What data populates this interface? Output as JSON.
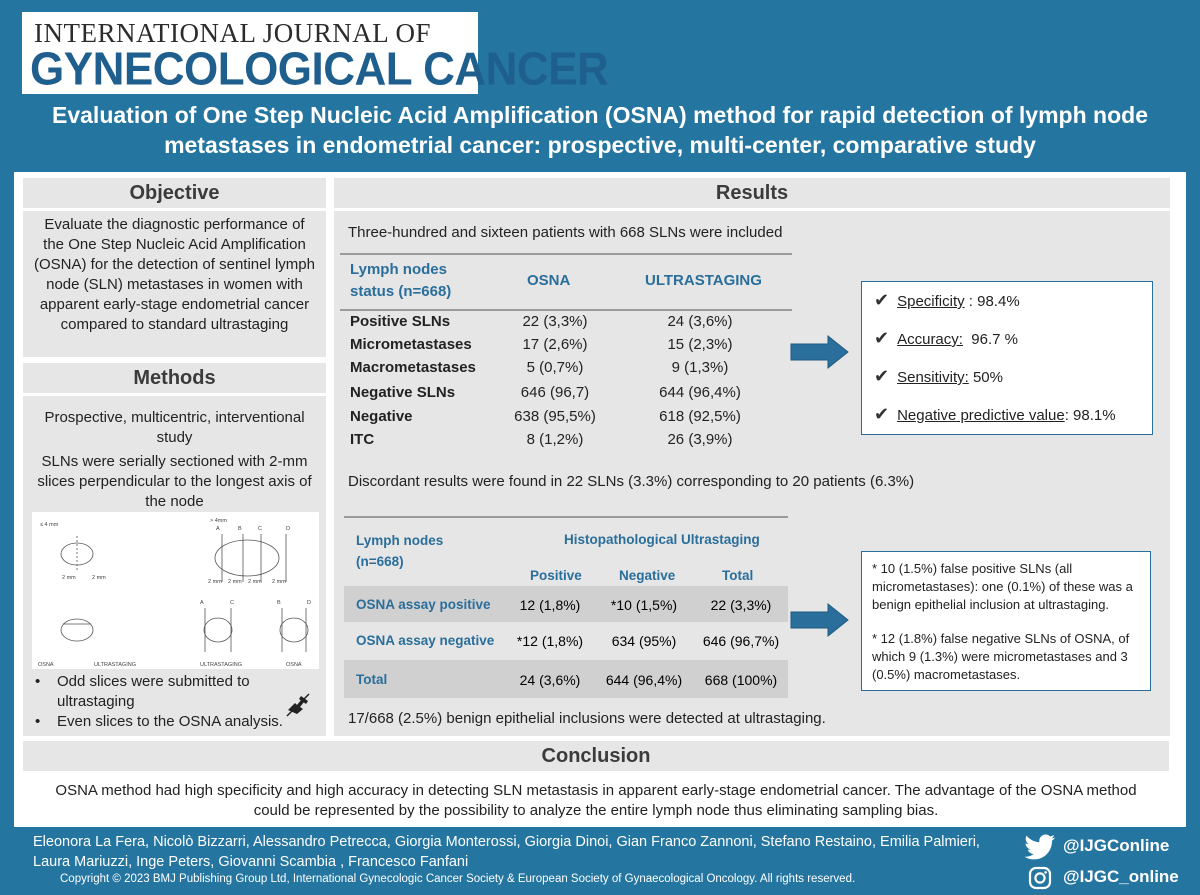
{
  "header": {
    "journal_top": "INTERNATIONAL JOURNAL OF",
    "journal_main": "GYNECOLOGICAL CANCER"
  },
  "title_line1": "Evaluation of One Step Nucleic Acid Amplification (OSNA) method for rapid detection of lymph node",
  "title_line2": "metastases in endometrial cancer: prospective, multi-center, comparative study",
  "objective": {
    "heading": "Objective",
    "text": "Evaluate the diagnostic performance of the One Step Nucleic Acid Amplification (OSNA) for the detection of sentinel lymph node (SLN) metastases in women with apparent early-stage endometrial cancer compared to standard ultrastaging"
  },
  "methods": {
    "heading": "Methods",
    "p1": "Prospective, multicentric, interventional study",
    "p2": "SLNs were serially sectioned with 2-mm slices perpendicular to the longest axis of the node",
    "figure": {
      "le4": "≤ 4 mm",
      "gt4": "> 4mm",
      "mm2": "2 mm",
      "A": "A",
      "B": "B",
      "C": "C",
      "D": "D",
      "osna": "OSNA",
      "ultrastaging": "ULTRASTAGING"
    },
    "bullet1": "Odd slices were submitted to ultrastaging",
    "bullet2": "Even slices to the OSNA analysis."
  },
  "results": {
    "heading": "Results",
    "intro": "Three-hundred and sixteen patients with 668 SLNs were included",
    "table1": {
      "h1": "Lymph nodes status (n=668)",
      "h2": "OSNA",
      "h3": "ULTRASTAGING",
      "rows": [
        {
          "label": "Positive SLNs",
          "osna": "22 (3,3%)",
          "ultra": "24 (3,6%)"
        },
        {
          "label": "Micrometastases",
          "osna": "17 (2,6%)",
          "ultra": "15 (2,3%)"
        },
        {
          "label": "Macrometastases",
          "osna": "5 (0,7%)",
          "ultra": "9 (1,3%)"
        },
        {
          "label": "Negative SLNs",
          "osna": "646 (96,7)",
          "ultra": "644 (96,4%)"
        },
        {
          "label": "Negative",
          "osna": "638 (95,5%)",
          "ultra": "618 (92,5%)"
        },
        {
          "label": "ITC",
          "osna": "8 (1,2%)",
          "ultra": "26 (3,9%)"
        }
      ]
    },
    "metrics": [
      {
        "label": "Specificity",
        "value": " : 98.4%"
      },
      {
        "label": "Accuracy:",
        "value": "  96.7 %"
      },
      {
        "label": "Sensitivity:",
        "value": " 50%"
      },
      {
        "label": "Negative predictive value",
        "value": ": 98.1%"
      }
    ],
    "discordant": "Discordant results were found in 22 SLNs (3.3%) corresponding to 20 patients (6.3%)",
    "table2": {
      "h_left": "Lymph nodes (n=668)",
      "h_group": "Histopathological Ultrastaging",
      "c1": "Positive",
      "c2": "Negative",
      "c3": "Total",
      "rows": [
        {
          "label": "OSNA assay positive",
          "pos": "12 (1,8%)",
          "neg": "*10 (1,5%)",
          "tot": "22 (3,3%)"
        },
        {
          "label": "OSNA assay negative",
          "pos": "*12 (1,8%)",
          "neg": "634 (95%)",
          "tot": "646 (96,7%)"
        },
        {
          "label": "Total",
          "pos": "24 (3,6%)",
          "neg": "644 (96,4%)",
          "tot": "668 (100%)"
        }
      ]
    },
    "note1": "* 10 (1.5%) false positive SLNs (all micrometastases): one (0.1%) of these was a benign epithelial inclusion at ultrastaging.",
    "note2": "* 12 (1.8%) false negative SLNs of OSNA, of which 9 (1.3%) were micrometastases and 3 (0.5%) macrometastases.",
    "benign": "17/668 (2.5%) benign epithelial inclusions were detected at ultrastaging."
  },
  "conclusion": {
    "heading": "Conclusion",
    "text": "OSNA method had high specificity and high accuracy in detecting SLN metastasis in apparent early-stage endometrial cancer. The advantage of the OSNA method could be represented by the possibility to analyze the entire lymph node thus eliminating sampling bias."
  },
  "footer": {
    "authors": "Eleonora La Fera, Nicolò Bizzarri, Alessandro Petrecca, Giorgia Monterossi, Giorgia Dinoi, Gian Franco Zannoni, Stefano Restaino, Emilia Palmieri, Laura Mariuzzi, Inge Peters, Giovanni Scambia , Francesco Fanfani",
    "copyright": "Copyright © 2023 BMJ Publishing Group Ltd, International Gynecologic Cancer Society & European Society of Gynaecological Oncology. All rights reserved.",
    "twitter": "@IJGConline",
    "instagram": "@IJGC_online"
  },
  "icons": [
    "check-icon",
    "arrow-right-icon",
    "hand-icon",
    "twitter-icon",
    "instagram-icon"
  ],
  "colors": {
    "brand_blue": "#2475a0",
    "accent": "#2a6e9b"
  }
}
